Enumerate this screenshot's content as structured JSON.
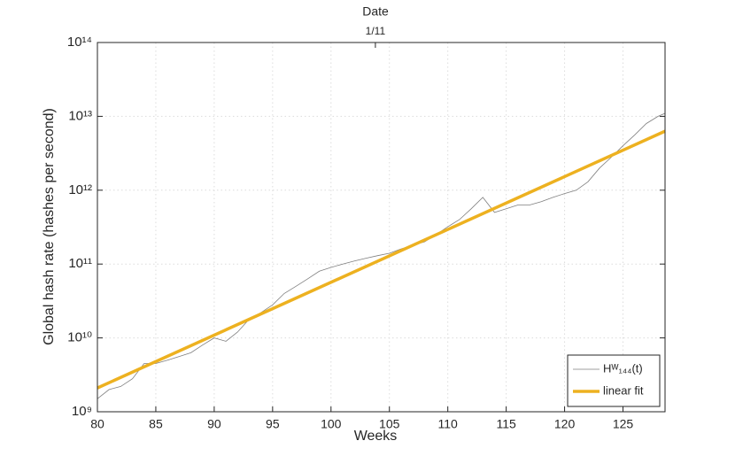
{
  "chart_data": {
    "type": "line",
    "xlabel": "Weeks",
    "ylabel": "Global hash rate (hashes per second)",
    "x2label": "Date",
    "xlim": [
      80,
      128.6
    ],
    "xticks": [
      80,
      85,
      90,
      95,
      100,
      105,
      110,
      115,
      120,
      125
    ],
    "x2ticks": [
      {
        "value": 103.8,
        "label": "1/11"
      }
    ],
    "ylim": [
      1000000000.0,
      100000000000000.0
    ],
    "log_y": true,
    "yticks": [
      {
        "value": 1000000000.0,
        "label": "10⁹"
      },
      {
        "value": 10000000000.0,
        "label": "10¹⁰"
      },
      {
        "value": 100000000000.0,
        "label": "10¹¹"
      },
      {
        "value": 1000000000000.0,
        "label": "10¹²"
      },
      {
        "value": 10000000000000.0,
        "label": "10¹³"
      },
      {
        "value": 100000000000000.0,
        "label": "10¹⁴"
      }
    ],
    "grid": true,
    "legend": "lower right",
    "series": [
      {
        "name": "Hᵂ₁₄₄(t)",
        "color": "#7f7f7f",
        "width": 0.8,
        "x": [
          80,
          81,
          82,
          83,
          84,
          85,
          86,
          87,
          88,
          89,
          90,
          91,
          92,
          93,
          94,
          95,
          96,
          97,
          98,
          99,
          100,
          101,
          102,
          103,
          104,
          105,
          106,
          107,
          108,
          109,
          110,
          111,
          112,
          113,
          114,
          115,
          116,
          117,
          118,
          119,
          120,
          121,
          122,
          123,
          124,
          125,
          126,
          127,
          128,
          128.6
        ],
        "values": [
          1500000000.0,
          2000000000.0,
          2200000000.0,
          2800000000.0,
          4500000000.0,
          4500000000.0,
          5000000000.0,
          5600000000.0,
          6300000000.0,
          8000000000.0,
          10000000000.0,
          9000000000.0,
          12000000000.0,
          18000000000.0,
          22000000000.0,
          28000000000.0,
          40000000000.0,
          50000000000.0,
          63000000000.0,
          80000000000.0,
          90000000000.0,
          100000000000.0,
          110000000000.0,
          120000000000.0,
          130000000000.0,
          140000000000.0,
          160000000000.0,
          180000000000.0,
          200000000000.0,
          250000000000.0,
          320000000000.0,
          400000000000.0,
          560000000000.0,
          800000000000.0,
          500000000000.0,
          560000000000.0,
          630000000000.0,
          630000000000.0,
          700000000000.0,
          800000000000.0,
          900000000000.0,
          1000000000000.0,
          1300000000000.0,
          2000000000000.0,
          2800000000000.0,
          4000000000000.0,
          5600000000000.0,
          8000000000000.0,
          10000000000000.0,
          11000000000000.0
        ]
      },
      {
        "name": "linear fit",
        "color": "#edb120",
        "width": 3.5,
        "x": [
          80,
          128.6
        ],
        "values": [
          2100000000.0,
          6300000000000.0
        ]
      }
    ]
  }
}
